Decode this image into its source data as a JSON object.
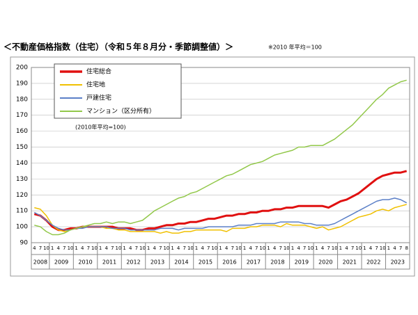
{
  "chart_data": {
    "type": "line",
    "title": "＜不動産価格指数（住宅）（令和５年８月分・季節調整値）＞",
    "subtitle": "※2010 年平均＝100",
    "annotation": "(2010年平均=100)",
    "categories": [
      "4",
      "7",
      "10",
      "1",
      "4",
      "7",
      "10",
      "1",
      "4",
      "7",
      "10",
      "1",
      "4",
      "7",
      "10",
      "1",
      "4",
      "7",
      "10",
      "1",
      "4",
      "7",
      "10",
      "1",
      "4",
      "7",
      "10",
      "1",
      "4",
      "7",
      "10",
      "1",
      "4",
      "7",
      "10",
      "1",
      "4",
      "7",
      "10",
      "1",
      "4",
      "7",
      "10",
      "1",
      "4",
      "7",
      "10",
      "1",
      "4",
      "7",
      "10",
      "1",
      "4",
      "7",
      "10",
      "1",
      "4",
      "7",
      "10",
      "1",
      "4",
      "7",
      "8"
    ],
    "years": [
      "2008",
      "2009",
      "2010",
      "2011",
      "2012",
      "2013",
      "2014",
      "2015",
      "2016",
      "2017",
      "2018",
      "2019",
      "2020",
      "2021",
      "2022",
      "2023"
    ],
    "series": [
      {
        "name": "住宅総合",
        "color": "#e01010",
        "width": 3,
        "values": [
          108,
          107,
          104,
          100,
          98,
          98,
          99,
          99,
          100,
          100,
          100,
          100,
          100,
          100,
          99,
          99,
          99,
          98,
          98,
          99,
          99,
          100,
          101,
          101,
          102,
          102,
          103,
          103,
          104,
          105,
          105,
          106,
          107,
          107,
          108,
          108,
          109,
          109,
          110,
          110,
          111,
          111,
          112,
          112,
          113,
          113,
          113,
          113,
          113,
          112,
          114,
          116,
          117,
          119,
          121,
          124,
          127,
          130,
          132,
          133,
          134,
          134,
          135
        ]
      },
      {
        "name": "住宅地",
        "color": "#f0c000",
        "width": 1.5,
        "values": [
          112,
          111,
          107,
          101,
          98,
          97,
          98,
          99,
          100,
          100,
          100,
          100,
          99,
          99,
          98,
          98,
          97,
          97,
          97,
          97,
          97,
          96,
          97,
          96,
          96,
          97,
          97,
          98,
          98,
          98,
          98,
          98,
          97,
          99,
          99,
          99,
          100,
          100,
          101,
          101,
          101,
          100,
          102,
          101,
          101,
          101,
          100,
          99,
          100,
          98,
          99,
          100,
          102,
          104,
          106,
          107,
          108,
          110,
          111,
          110,
          112,
          113,
          114
        ]
      },
      {
        "name": "戸建住宅",
        "color": "#5b7fc7",
        "width": 1.5,
        "values": [
          109,
          107,
          104,
          101,
          99,
          98,
          98,
          99,
          99,
          100,
          100,
          100,
          100,
          99,
          99,
          99,
          98,
          98,
          98,
          98,
          98,
          99,
          99,
          99,
          98,
          99,
          99,
          99,
          99,
          100,
          100,
          100,
          100,
          100,
          101,
          101,
          101,
          102,
          102,
          102,
          102,
          103,
          103,
          103,
          103,
          102,
          102,
          101,
          101,
          101,
          102,
          104,
          106,
          108,
          110,
          112,
          114,
          116,
          117,
          117,
          118,
          117,
          115
        ]
      },
      {
        "name": "マンション（区分所有）",
        "color": "#92c84a",
        "width": 1.5,
        "values": [
          101,
          100,
          97,
          95,
          95,
          96,
          98,
          99,
          100,
          101,
          102,
          102,
          103,
          102,
          103,
          103,
          102,
          103,
          104,
          107,
          110,
          112,
          114,
          116,
          118,
          119,
          121,
          122,
          124,
          126,
          128,
          130,
          132,
          133,
          135,
          137,
          139,
          140,
          141,
          143,
          145,
          146,
          147,
          148,
          150,
          150,
          151,
          151,
          151,
          153,
          155,
          158,
          161,
          164,
          168,
          172,
          176,
          180,
          183,
          187,
          189,
          191,
          192
        ]
      }
    ],
    "ylim": [
      90,
      200
    ],
    "yticks": [
      90,
      100,
      110,
      120,
      130,
      140,
      150,
      160,
      170,
      180,
      190,
      200
    ],
    "grid": true,
    "legend": "top-left"
  }
}
